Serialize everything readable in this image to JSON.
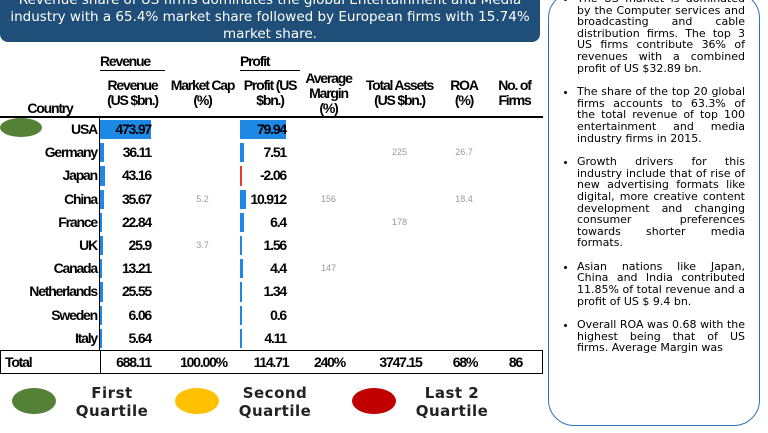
{
  "header": {
    "title": "Revenue share of US firms dominates the global Entertainment and Media industry with a 65.4% market share followed by European firms with 15.74% market share."
  },
  "table": {
    "groups": [
      "Revenue",
      "Profit"
    ],
    "columns": [
      "Country",
      "Revenue (US $bn.)",
      "Market Cap (%)",
      "Profit (US $bn.)",
      "Average Margin (%)",
      "Total Assets (US $bn.)",
      "ROA (%)",
      "No. of Firms"
    ],
    "rows": [
      [
        "USA",
        473.97,
        null,
        79.94,
        null,
        null,
        null,
        null
      ],
      [
        "Germany",
        36.11,
        null,
        7.51,
        null,
        225,
        26.7,
        null
      ],
      [
        "Japan",
        43.16,
        null,
        -2.06,
        null,
        null,
        null,
        null
      ],
      [
        "China",
        35.67,
        5.2,
        10.912,
        156,
        null,
        18.4,
        null
      ],
      [
        "France",
        22.84,
        null,
        6.4,
        null,
        178,
        null,
        null
      ],
      [
        "UK",
        25.9,
        3.7,
        1.56,
        null,
        null,
        null,
        null
      ],
      [
        "Canada",
        13.21,
        null,
        4.4,
        147,
        null,
        null,
        null
      ],
      [
        "Netherlands",
        25.55,
        null,
        1.34,
        null,
        null,
        null,
        null
      ],
      [
        "Sweden",
        6.06,
        null,
        0.6,
        null,
        null,
        null,
        null
      ],
      [
        "Italy",
        5.64,
        null,
        4.11,
        null,
        null,
        null,
        null
      ]
    ],
    "total": [
      "Total",
      "688.11",
      "100.00%",
      "114.71",
      "240%",
      "3747.15",
      "68%",
      "86"
    ]
  },
  "legend": [
    {
      "label": "First Quartile",
      "color": "#538135"
    },
    {
      "label": "Second Quartile",
      "color": "#ffc000"
    },
    {
      "label": "Last 2 Quartile",
      "color": "#c00000"
    }
  ],
  "notes": [
    "The US market is dominated by the Computer services and broadcasting and cable distribution firms. The top 3 US firms contribute 36% of revenues with a combined profit of US $32.89 bn.",
    "The share of the top 20 global firms accounts to 63.3% of the total revenue of top 100 entertainment and media industry firms in 2015.",
    "Growth drivers for this industry include that of rise of new advertising formats like digital, more creative content development and changing consumer preferences towards shorter media formats.",
    "Asian nations like Japan, China and India contributed 11.85% of total revenue and a profit of US $ 9.4 bn.",
    "Overall ROA was 0.68 with the highest being that of US firms. Average Margin was"
  ]
}
